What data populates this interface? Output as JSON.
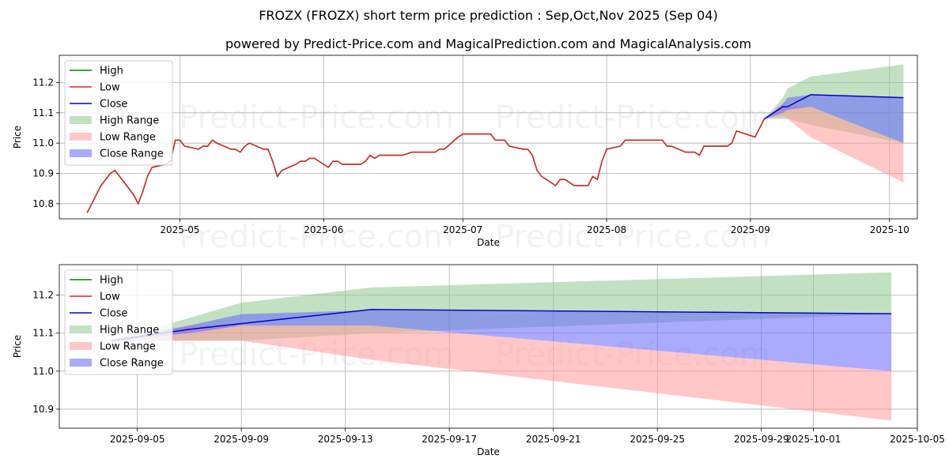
{
  "title": "FROZX (FROZX) short term price prediction : Sep,Oct,Nov 2025 (Sep 04)",
  "subtitle": "powered by Predict-Price.com and MagicalPrediction.com and MagicalAnalysis.com",
  "watermark": "Predict-Price.com",
  "colors": {
    "high": "#008000",
    "low": "#d62728",
    "close": "#0000cc",
    "high_range": "#8fc98f",
    "low_range": "#ff9999",
    "close_range": "#6464ff"
  },
  "chart_data": [
    {
      "type": "line",
      "xlabel": "Date",
      "ylabel": "Price",
      "xlim": [
        "2025-04-05",
        "2025-10-07"
      ],
      "ylim": [
        10.75,
        11.29
      ],
      "xticks": [
        "2025-05-01",
        "2025-06-01",
        "2025-07-01",
        "2025-08-01",
        "2025-09-01",
        "2025-10-01"
      ],
      "xtick_labels": [
        "2025-05",
        "2025-06",
        "2025-07",
        "2025-08",
        "2025-09",
        "2025-10"
      ],
      "yticks": [
        10.8,
        10.9,
        11.0,
        11.1,
        11.2
      ],
      "ytick_labels": [
        "10.8",
        "10.9",
        "11.0",
        "11.1",
        "11.2"
      ],
      "grid": true,
      "legend_position": "top-left",
      "legend": [
        "High",
        "Low",
        "Close",
        "High Range",
        "Low Range",
        "Close Range"
      ],
      "history": {
        "x": [
          "2025-04-11",
          "2025-04-14",
          "2025-04-16",
          "2025-04-17",
          "2025-04-21",
          "2025-04-22",
          "2025-04-23",
          "2025-04-24",
          "2025-04-25",
          "2025-04-28",
          "2025-04-29",
          "2025-04-30",
          "2025-05-01",
          "2025-05-02",
          "2025-05-05",
          "2025-05-06",
          "2025-05-07",
          "2025-05-08",
          "2025-05-09",
          "2025-05-12",
          "2025-05-13",
          "2025-05-14",
          "2025-05-15",
          "2025-05-16",
          "2025-05-19",
          "2025-05-20",
          "2025-05-21",
          "2025-05-22",
          "2025-05-23",
          "2025-05-26",
          "2025-05-27",
          "2025-05-28",
          "2025-05-29",
          "2025-05-30",
          "2025-06-02",
          "2025-06-03",
          "2025-06-04",
          "2025-06-05",
          "2025-06-06",
          "2025-06-09",
          "2025-06-10",
          "2025-06-11",
          "2025-06-12",
          "2025-06-13",
          "2025-06-16",
          "2025-06-17",
          "2025-06-18",
          "2025-06-20",
          "2025-06-23",
          "2025-06-24",
          "2025-06-25",
          "2025-06-26",
          "2025-06-27",
          "2025-06-30",
          "2025-07-01",
          "2025-07-02",
          "2025-07-03",
          "2025-07-07",
          "2025-07-08",
          "2025-07-09",
          "2025-07-10",
          "2025-07-11",
          "2025-07-14",
          "2025-07-15",
          "2025-07-16",
          "2025-07-17",
          "2025-07-18",
          "2025-07-21",
          "2025-07-22",
          "2025-07-23",
          "2025-07-24",
          "2025-07-25",
          "2025-07-28",
          "2025-07-29",
          "2025-07-30",
          "2025-07-31",
          "2025-08-01",
          "2025-08-04",
          "2025-08-05",
          "2025-08-06",
          "2025-08-07",
          "2025-08-08",
          "2025-08-11",
          "2025-08-12",
          "2025-08-13",
          "2025-08-14",
          "2025-08-15",
          "2025-08-18",
          "2025-08-19",
          "2025-08-20",
          "2025-08-21",
          "2025-08-22",
          "2025-08-25",
          "2025-08-26",
          "2025-08-27",
          "2025-08-28",
          "2025-08-29",
          "2025-09-02",
          "2025-09-03",
          "2025-09-04"
        ],
        "low": [
          10.77,
          10.86,
          10.9,
          10.91,
          10.83,
          10.8,
          10.84,
          10.89,
          10.92,
          10.93,
          10.94,
          11.01,
          11.01,
          10.99,
          10.98,
          10.99,
          10.99,
          11.01,
          11.0,
          10.98,
          10.98,
          10.97,
          10.99,
          11.0,
          10.98,
          10.98,
          10.94,
          10.89,
          10.91,
          10.93,
          10.94,
          10.94,
          10.95,
          10.95,
          10.92,
          10.94,
          10.94,
          10.93,
          10.93,
          10.93,
          10.94,
          10.96,
          10.95,
          10.96,
          10.96,
          10.96,
          10.96,
          10.97,
          10.97,
          10.97,
          10.97,
          10.98,
          10.98,
          11.02,
          11.03,
          11.03,
          11.03,
          11.03,
          11.01,
          11.01,
          11.01,
          10.99,
          10.98,
          10.98,
          10.96,
          10.91,
          10.89,
          10.86,
          10.88,
          10.88,
          10.87,
          10.86,
          10.86,
          10.89,
          10.88,
          10.94,
          10.98,
          10.99,
          11.01,
          11.01,
          11.01,
          11.01,
          11.01,
          11.01,
          11.01,
          10.99,
          10.99,
          10.97,
          10.97,
          10.97,
          10.96,
          10.99,
          10.99,
          10.99,
          10.99,
          11.0,
          11.04,
          11.02,
          11.05,
          11.08
        ]
      },
      "forecast": {
        "x": [
          "2025-09-04",
          "2025-09-08",
          "2025-09-09",
          "2025-09-14",
          "2025-10-04"
        ],
        "close": [
          11.08,
          11.12,
          11.12,
          11.16,
          11.15
        ],
        "high_range": [
          [
            11.08,
            11.08
          ],
          [
            11.08,
            11.15
          ],
          [
            11.08,
            11.18
          ],
          [
            11.06,
            11.22
          ],
          [
            11.0,
            11.26
          ]
        ],
        "low_range": [
          [
            11.08,
            11.08
          ],
          [
            11.09,
            11.13
          ],
          [
            11.08,
            11.12
          ],
          [
            11.02,
            11.12
          ],
          [
            10.87,
            11.0
          ]
        ],
        "close_range": [
          [
            11.08,
            11.08
          ],
          [
            11.1,
            11.13
          ],
          [
            11.11,
            11.15
          ],
          [
            11.12,
            11.16
          ],
          [
            11.0,
            11.15
          ]
        ]
      }
    },
    {
      "type": "line",
      "xlabel": "Date",
      "ylabel": "Price",
      "xlim": [
        "2025-09-02",
        "2025-10-05"
      ],
      "ylim": [
        10.85,
        11.28
      ],
      "xticks": [
        "2025-09-05",
        "2025-09-09",
        "2025-09-13",
        "2025-09-17",
        "2025-09-21",
        "2025-09-25",
        "2025-09-29",
        "2025-10-01",
        "2025-10-05"
      ],
      "xtick_labels": [
        "2025-09-05",
        "2025-09-09",
        "2025-09-13",
        "2025-09-17",
        "2025-09-21",
        "2025-09-25",
        "2025-09-29",
        "2025-10-01",
        "2025-10-05"
      ],
      "yticks": [
        10.9,
        11.0,
        11.1,
        11.2
      ],
      "ytick_labels": [
        "10.9",
        "11.0",
        "11.1",
        "11.2"
      ],
      "grid": true,
      "legend_position": "top-left",
      "legend": [
        "High",
        "Low",
        "Close",
        "High Range",
        "Low Range",
        "Close Range"
      ],
      "forecast": {
        "x": [
          "2025-09-04",
          "2025-09-07",
          "2025-09-09",
          "2025-09-14",
          "2025-10-04"
        ],
        "close": [
          11.08,
          11.11,
          11.125,
          11.162,
          11.151
        ],
        "high_range": [
          [
            11.08,
            11.08
          ],
          [
            11.08,
            11.14
          ],
          [
            11.08,
            11.18
          ],
          [
            11.1,
            11.22
          ],
          [
            11.15,
            11.26
          ]
        ],
        "low_range": [
          [
            11.08,
            11.08
          ],
          [
            11.08,
            11.12
          ],
          [
            11.08,
            11.12
          ],
          [
            11.03,
            11.12
          ],
          [
            10.87,
            11.0
          ]
        ],
        "close_range": [
          [
            11.08,
            11.08
          ],
          [
            11.1,
            11.12
          ],
          [
            11.12,
            11.15
          ],
          [
            11.12,
            11.16
          ],
          [
            11.0,
            11.15
          ]
        ]
      }
    }
  ]
}
